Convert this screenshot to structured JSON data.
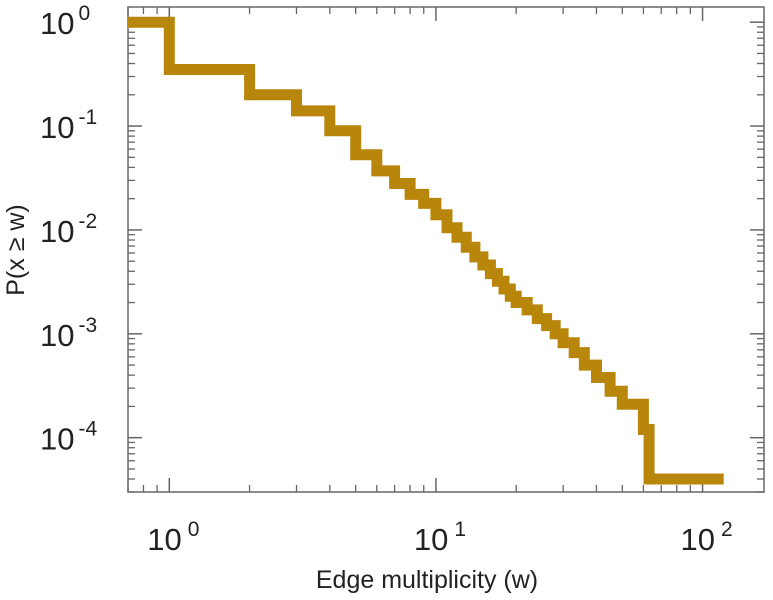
{
  "chart_data": {
    "type": "line",
    "step": true,
    "xlabel": "Edge multiplicity (w)",
    "ylabel": "P(x ≥ w)",
    "xscale": "log",
    "yscale": "log",
    "xlim": [
      0.7,
      170
    ],
    "ylim": [
      3e-05,
      1.4
    ],
    "grid": false,
    "legend": "none",
    "line_color": "#B8860B",
    "x_ticks": [
      {
        "base": "10",
        "exp": "0",
        "value": 1
      },
      {
        "base": "10",
        "exp": "1",
        "value": 10
      },
      {
        "base": "10",
        "exp": "2",
        "value": 100
      }
    ],
    "y_ticks": [
      {
        "base": "10",
        "exp": "0",
        "value": 1
      },
      {
        "base": "10",
        "exp": "-1",
        "value": 0.1
      },
      {
        "base": "10",
        "exp": "-2",
        "value": 0.01
      },
      {
        "base": "10",
        "exp": "-3",
        "value": 0.001
      },
      {
        "base": "10",
        "exp": "-4",
        "value": 0.0001
      }
    ],
    "series": [
      {
        "x": [
          0.7,
          1,
          2,
          3,
          4,
          5,
          6,
          7,
          8,
          9,
          10,
          11,
          12,
          13,
          14,
          15,
          16,
          17,
          18,
          19,
          20,
          22,
          24,
          26,
          28,
          30,
          33,
          36,
          40,
          45,
          50,
          60,
          63,
          120
        ],
        "y": [
          1,
          0.35,
          0.2,
          0.14,
          0.09,
          0.053,
          0.037,
          0.028,
          0.022,
          0.018,
          0.014,
          0.0105,
          0.0085,
          0.0068,
          0.0055,
          0.0046,
          0.0038,
          0.0032,
          0.0027,
          0.0023,
          0.002,
          0.0017,
          0.0014,
          0.0012,
          0.001,
          0.00082,
          0.00066,
          0.0005,
          0.00038,
          0.00028,
          0.00021,
          0.00012,
          4e-05,
          4e-05
        ]
      }
    ]
  }
}
